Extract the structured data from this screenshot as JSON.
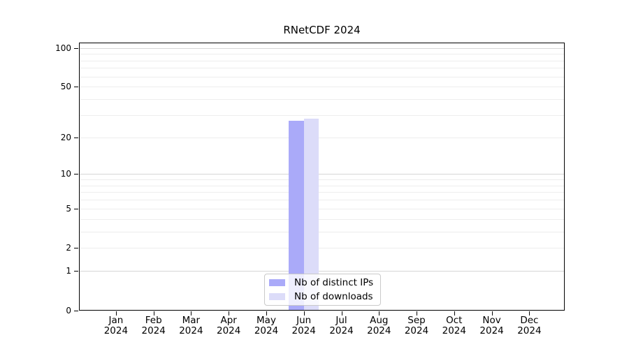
{
  "chart_data": {
    "type": "bar",
    "title": "RNetCDF 2024",
    "year_label": "2024",
    "categories": [
      "Jan",
      "Feb",
      "Mar",
      "Apr",
      "May",
      "Jun",
      "Jul",
      "Aug",
      "Sep",
      "Oct",
      "Nov",
      "Dec"
    ],
    "series": [
      {
        "name": "Nb of distinct IPs",
        "color": "#aaaaf9",
        "values": [
          0,
          0,
          0,
          0,
          0,
          27,
          0,
          0,
          0,
          0,
          0,
          0
        ]
      },
      {
        "name": "Nb of downloads",
        "color": "#dcdcf9",
        "values": [
          0,
          0,
          0,
          0,
          0,
          28,
          0,
          0,
          0,
          0,
          0,
          0
        ]
      }
    ],
    "xlabel": "",
    "ylabel": "",
    "yscale": "log1p",
    "ylim": [
      0,
      110
    ],
    "yticks": [
      0,
      1,
      2,
      5,
      10,
      20,
      50,
      100
    ],
    "ygrid_major": [
      1,
      10,
      100
    ],
    "ygrid_minor": [
      2,
      3,
      4,
      5,
      6,
      7,
      8,
      9,
      20,
      30,
      40,
      50,
      60,
      70,
      80,
      90
    ],
    "grid": true,
    "legend_position": "bottom-center",
    "colors": {
      "grid_major": "#d6d6d6",
      "grid_minor": "#ededed",
      "spine": "#000000",
      "tick": "#000000",
      "text": "#000000",
      "legend_border": "#c9c9c9"
    }
  }
}
